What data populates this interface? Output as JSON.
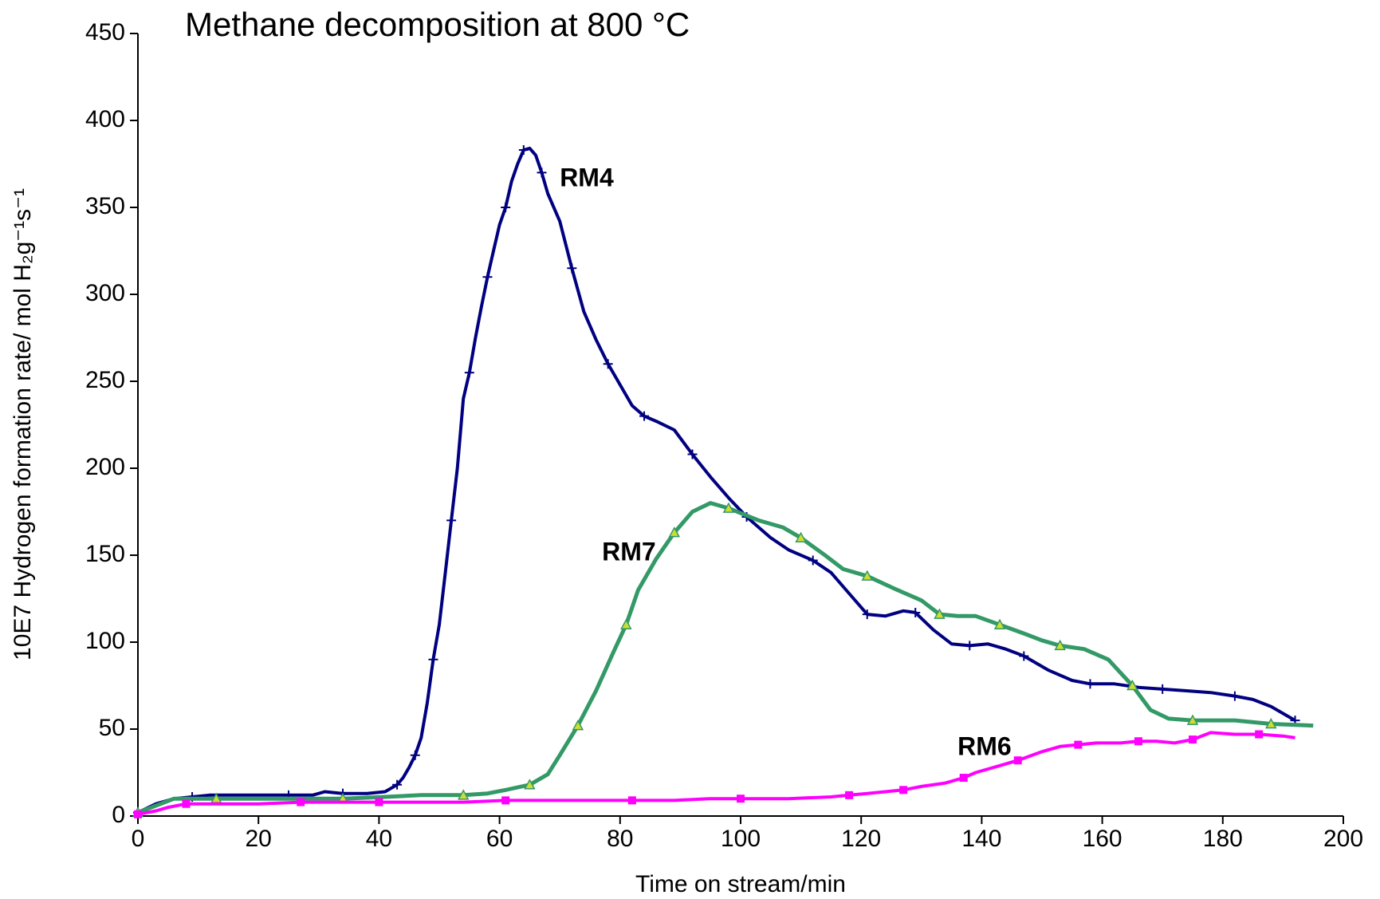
{
  "chart_data": {
    "type": "line",
    "title": "Methane decomposition at 800 °C",
    "x_label": "Time on stream/min",
    "y_label": "10E7 Hydrogen formation rate/ mol H₂g⁻¹s⁻¹",
    "xlim": [
      0,
      200
    ],
    "xticks": [
      0,
      20,
      40,
      60,
      80,
      100,
      120,
      140,
      160,
      180,
      200
    ],
    "ylim": [
      0,
      450
    ],
    "yticks": [
      0,
      50,
      100,
      150,
      200,
      250,
      300,
      350,
      400,
      450
    ],
    "grid": false,
    "annotations": [
      "RM4",
      "RM7",
      "RM6"
    ],
    "series": [
      {
        "name": "RM4",
        "color": "#000080",
        "x": [
          0,
          3,
          6,
          9,
          12,
          18,
          25,
          29,
          31,
          34,
          38,
          41,
          43,
          44,
          45,
          46,
          47,
          48,
          49,
          50,
          51,
          52,
          53,
          54,
          55,
          56,
          57,
          58,
          59,
          60,
          61,
          62,
          63,
          64,
          65,
          66,
          67,
          68,
          70,
          72,
          74,
          76,
          78,
          80,
          82,
          84,
          86,
          89,
          92,
          95,
          98,
          101,
          105,
          108,
          112,
          115,
          118,
          121,
          124,
          127,
          129,
          132,
          135,
          138,
          141,
          144,
          147,
          151,
          155,
          158,
          162,
          166,
          170,
          174,
          178,
          182,
          185,
          188,
          192
        ],
        "values": [
          2,
          7,
          10,
          11,
          12,
          12,
          12,
          12,
          14,
          13,
          13,
          14,
          18,
          22,
          28,
          35,
          45,
          65,
          90,
          110,
          140,
          170,
          200,
          240,
          255,
          275,
          293,
          310,
          325,
          340,
          350,
          365,
          375,
          383,
          384,
          380,
          370,
          358,
          342,
          315,
          290,
          274,
          260,
          248,
          236,
          230,
          227,
          222,
          208,
          195,
          183,
          172,
          160,
          153,
          147,
          140,
          128,
          116,
          115,
          118,
          117,
          107,
          99,
          98,
          99,
          96,
          92,
          84,
          78,
          76,
          76,
          74,
          73,
          72,
          71,
          69,
          67,
          63,
          55
        ]
      },
      {
        "name": "RM7",
        "color": "#339966",
        "x": [
          0,
          3,
          6,
          13,
          20,
          27,
          34,
          41,
          47,
          54,
          58,
          61,
          65,
          68,
          70,
          73,
          76,
          79,
          81,
          83,
          86,
          89,
          92,
          95,
          98,
          103,
          107,
          110,
          114,
          117,
          121,
          126,
          130,
          133,
          136,
          139,
          143,
          147,
          150,
          153,
          157,
          161,
          165,
          168,
          171,
          175,
          178,
          182,
          188,
          195
        ],
        "values": [
          2,
          6,
          10,
          10,
          10,
          10,
          10,
          11,
          12,
          12,
          13,
          15,
          18,
          24,
          35,
          52,
          72,
          95,
          110,
          130,
          148,
          163,
          175,
          180,
          177,
          170,
          166,
          160,
          150,
          142,
          138,
          130,
          124,
          116,
          115,
          115,
          110,
          105,
          101,
          98,
          96,
          90,
          75,
          61,
          56,
          55,
          55,
          55,
          53,
          52
        ]
      },
      {
        "name": "RM6",
        "color": "#ff00ff",
        "x": [
          0,
          3,
          5,
          8,
          13,
          20,
          27,
          29,
          34,
          40,
          47,
          54,
          61,
          68,
          75,
          82,
          89,
          95,
          100,
          108,
          115,
          118,
          121,
          124,
          127,
          130,
          134,
          137,
          139,
          143,
          146,
          150,
          153,
          156,
          159,
          163,
          166,
          169,
          172,
          175,
          178,
          182,
          186,
          190,
          192
        ],
        "values": [
          1,
          3,
          5,
          7,
          7,
          7,
          8,
          8,
          8,
          8,
          8,
          8,
          9,
          9,
          9,
          9,
          9,
          10,
          10,
          10,
          11,
          12,
          13,
          14,
          15,
          17,
          19,
          22,
          25,
          29,
          32,
          37,
          40,
          41,
          42,
          42,
          43,
          43,
          42,
          44,
          48,
          47,
          47,
          46,
          45
        ]
      }
    ]
  }
}
